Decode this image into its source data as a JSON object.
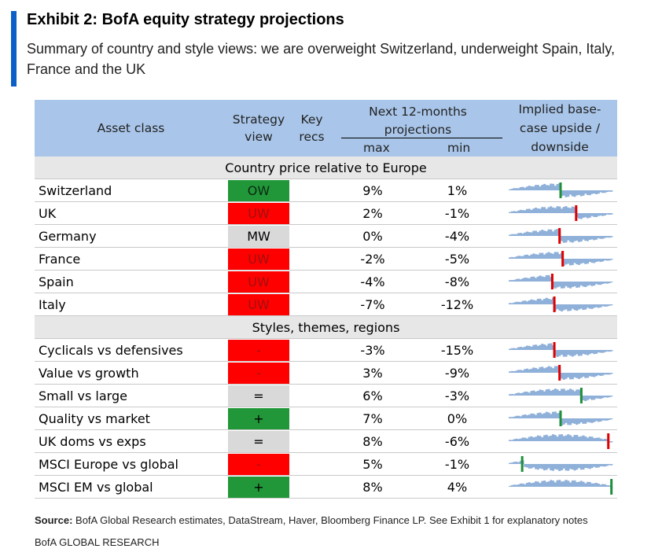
{
  "exhibit": {
    "title": "Exhibit 2: BofA equity strategy projections",
    "subtitle": "Summary of country and style views: we are overweight Switzerland, underweight Spain, Italy, France and the UK"
  },
  "table": {
    "headers": {
      "asset_class": "Asset class",
      "strategy_view_1": "Strategy",
      "strategy_view_2": "view",
      "key_recs_1": "Key",
      "key_recs_2": "recs",
      "projections_1": "Next 12-months",
      "projections_2": "projections",
      "max": "max",
      "min": "min",
      "implied_1": "Implied base-",
      "implied_2": "case upside /",
      "implied_3": "downside"
    },
    "sections": [
      {
        "title": "Country price relative to Europe",
        "rows": [
          {
            "label": "Switzerland",
            "view": "OW",
            "view_class": "ow",
            "max": "9%",
            "min": "1%",
            "marker": 0.5,
            "marker_color": "#1f8f3a"
          },
          {
            "label": "UK",
            "view": "UW",
            "view_class": "uw",
            "max": "2%",
            "min": "-1%",
            "marker": 0.65,
            "marker_color": "#e00000"
          },
          {
            "label": "Germany",
            "view": "MW",
            "view_class": "mw",
            "max": "0%",
            "min": "-4%",
            "marker": 0.49,
            "marker_color": "#e00000"
          },
          {
            "label": "France",
            "view": "UW",
            "view_class": "uw",
            "max": "-2%",
            "min": "-5%",
            "marker": 0.52,
            "marker_color": "#e00000"
          },
          {
            "label": "Spain",
            "view": "UW",
            "view_class": "uw",
            "max": "-4%",
            "min": "-8%",
            "marker": 0.42,
            "marker_color": "#e00000"
          },
          {
            "label": "Italy",
            "view": "UW",
            "view_class": "uw",
            "max": "-7%",
            "min": "-12%",
            "marker": 0.44,
            "marker_color": "#e00000"
          }
        ]
      },
      {
        "title": "Styles, themes, regions",
        "rows": [
          {
            "label": "Cyclicals vs defensives",
            "view": "-",
            "view_class": "neg",
            "max": "-3%",
            "min": "-15%",
            "marker": 0.44,
            "marker_color": "#e00000"
          },
          {
            "label": "Value vs growth",
            "view": "-",
            "view_class": "neg",
            "max": "3%",
            "min": "-9%",
            "marker": 0.49,
            "marker_color": "#e00000"
          },
          {
            "label": "Small vs large",
            "view": "=",
            "view_class": "eq",
            "max": "6%",
            "min": "-3%",
            "marker": 0.7,
            "marker_color": "#1f8f3a"
          },
          {
            "label": "Quality vs market",
            "view": "+",
            "view_class": "pos",
            "max": "7%",
            "min": "0%",
            "marker": 0.5,
            "marker_color": "#1f8f3a"
          },
          {
            "label": "UK doms vs exps",
            "view": "=",
            "view_class": "eq",
            "max": "8%",
            "min": "-6%",
            "marker": 0.96,
            "marker_color": "#e00000"
          },
          {
            "label": "MSCI Europe vs global",
            "view": "-",
            "view_class": "neg",
            "max": "5%",
            "min": "-1%",
            "marker": 0.13,
            "marker_color": "#1f8f3a"
          },
          {
            "label": "MSCI EM vs global",
            "view": "+",
            "view_class": "pos",
            "max": "8%",
            "min": "4%",
            "marker": 0.99,
            "marker_color": "#1f8f3a"
          }
        ]
      }
    ]
  },
  "source_label": "Source:",
  "source_text": " BofA Global Research estimates, DataStream, Haver, Bloomberg Finance LP. See Exhibit 1 for explanatory notes",
  "footer": "BofA GLOBAL RESEARCH",
  "colors": {
    "accent": "#0b5fc7",
    "header_bg": "#a9c6ea",
    "section_bg": "#e7e7e7",
    "overweight": "#22973a",
    "underweight": "#ff0000",
    "neutral": "#d9d9d9",
    "spark_bar": "#8fb0d9"
  }
}
